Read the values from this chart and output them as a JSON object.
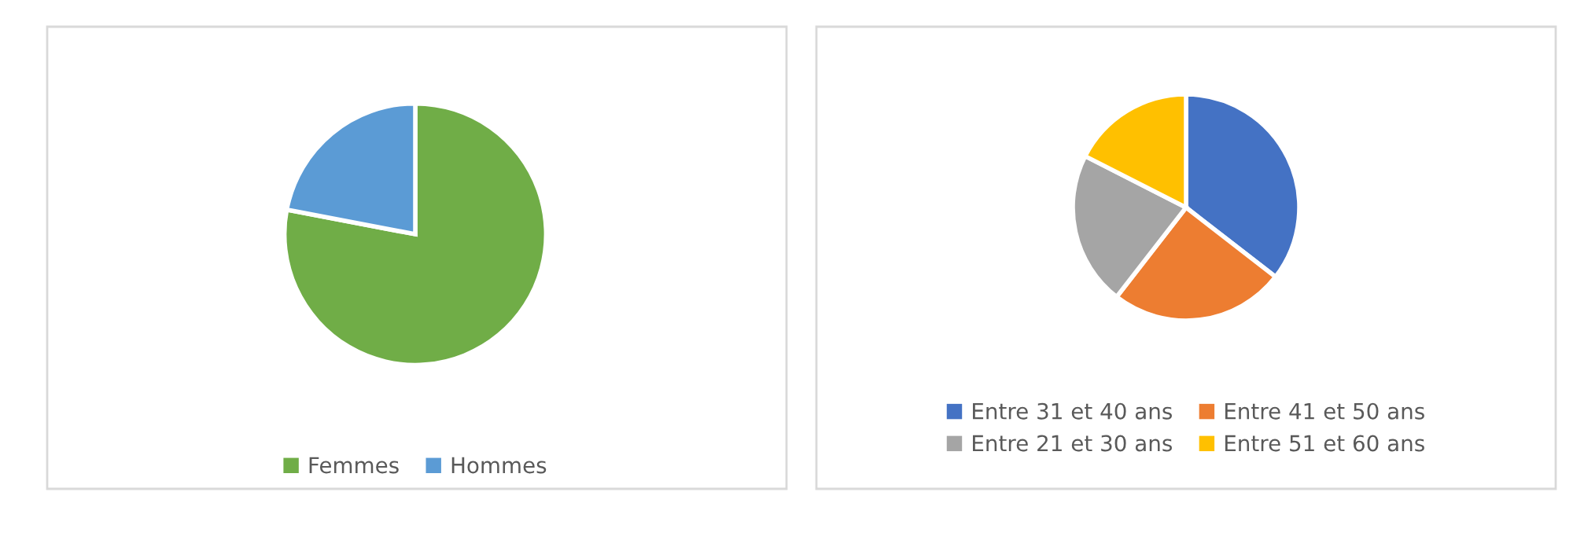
{
  "chart_data": [
    {
      "type": "pie",
      "categories": [
        "Femmes",
        "Hommes"
      ],
      "values": [
        78,
        22
      ],
      "colors": [
        "#70ad47",
        "#5b9bd5"
      ],
      "legend": "bottom"
    },
    {
      "type": "pie",
      "categories": [
        "Entre 31 et 40 ans",
        "Entre 41 et 50 ans",
        "Entre 21 et 30 ans",
        "Entre 51 et 60 ans"
      ],
      "values": [
        35.5,
        25,
        22,
        17.5
      ],
      "colors": [
        "#4472c4",
        "#ed7d31",
        "#a5a5a5",
        "#ffc000"
      ],
      "legend": "bottom"
    }
  ]
}
